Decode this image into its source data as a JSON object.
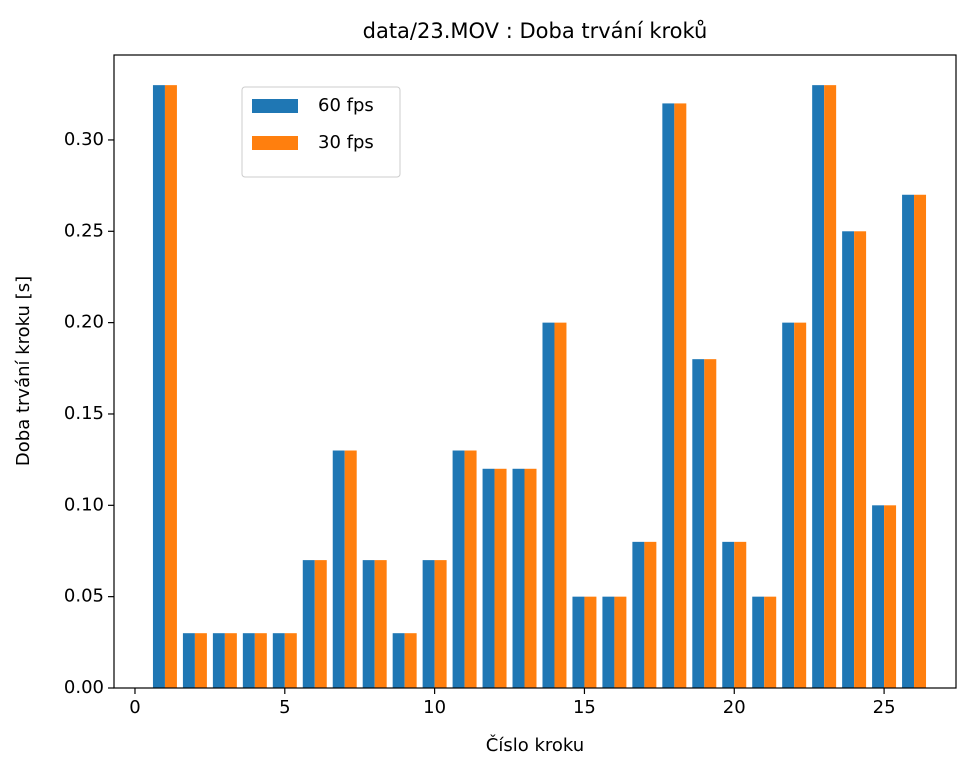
{
  "chart_data": {
    "type": "bar",
    "title": "data/23.MOV : Doba trvání kroků",
    "x_label": "Číslo kroku",
    "y_label": "Doba trvání kroku [s]",
    "x": [
      1,
      2,
      3,
      4,
      5,
      6,
      7,
      8,
      9,
      10,
      11,
      12,
      13,
      14,
      15,
      16,
      17,
      18,
      19,
      20,
      21,
      22,
      23,
      24,
      25,
      26
    ],
    "series": [
      {
        "name": "60 fps",
        "color": "#1f77b4",
        "values": [
          0.33,
          0.03,
          0.03,
          0.03,
          0.03,
          0.07,
          0.13,
          0.07,
          0.03,
          0.07,
          0.13,
          0.12,
          0.12,
          0.2,
          0.05,
          0.05,
          0.08,
          0.32,
          0.18,
          0.08,
          0.05,
          0.2,
          0.33,
          0.25,
          0.1,
          0.27
        ]
      },
      {
        "name": "30 fps",
        "color": "#ff7f0e",
        "values": [
          0.33,
          0.03,
          0.03,
          0.03,
          0.03,
          0.07,
          0.13,
          0.07,
          0.03,
          0.07,
          0.13,
          0.12,
          0.12,
          0.2,
          0.05,
          0.05,
          0.08,
          0.32,
          0.18,
          0.08,
          0.05,
          0.2,
          0.33,
          0.25,
          0.1,
          0.27
        ]
      }
    ],
    "xlim": [
      -0.7,
      27.4
    ],
    "xticks": [
      0,
      5,
      10,
      15,
      20,
      25
    ],
    "ylim": [
      0,
      0.3465
    ],
    "yticks": [
      {
        "value": 0,
        "label": "0.00"
      },
      {
        "value": 0.05,
        "label": "0.05"
      },
      {
        "value": 0.1,
        "label": "0.10"
      },
      {
        "value": 0.15,
        "label": "0.15"
      },
      {
        "value": 0.2,
        "label": "0.20"
      },
      {
        "value": 0.25,
        "label": "0.25"
      },
      {
        "value": 0.3,
        "label": "0.30"
      }
    ],
    "grid": false,
    "legend": "upper left"
  }
}
